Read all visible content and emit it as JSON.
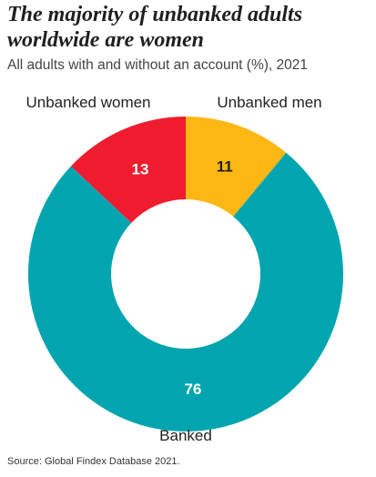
{
  "title": "The majority of unbanked adults worldwide are women",
  "subtitle": "All adults with and without an account (%), 2021",
  "source": "Source: Global Findex Database 2021.",
  "chart_data": {
    "type": "pie",
    "variant": "donut",
    "title": "The majority of unbanked adults worldwide are women",
    "subtitle": "All adults with and without an account (%), 2021",
    "start": "top",
    "direction": "clockwise",
    "slices": [
      {
        "name": "Unbanked men",
        "value": 11,
        "color": "#FDB714",
        "label_color": "#1f1f1f"
      },
      {
        "name": "Banked",
        "value": 76,
        "color": "#00A5B0",
        "label_color": "#ffffff"
      },
      {
        "name": "Unbanked women",
        "value": 13,
        "color": "#EE1C2E",
        "label_color": "#ffffff"
      }
    ]
  }
}
